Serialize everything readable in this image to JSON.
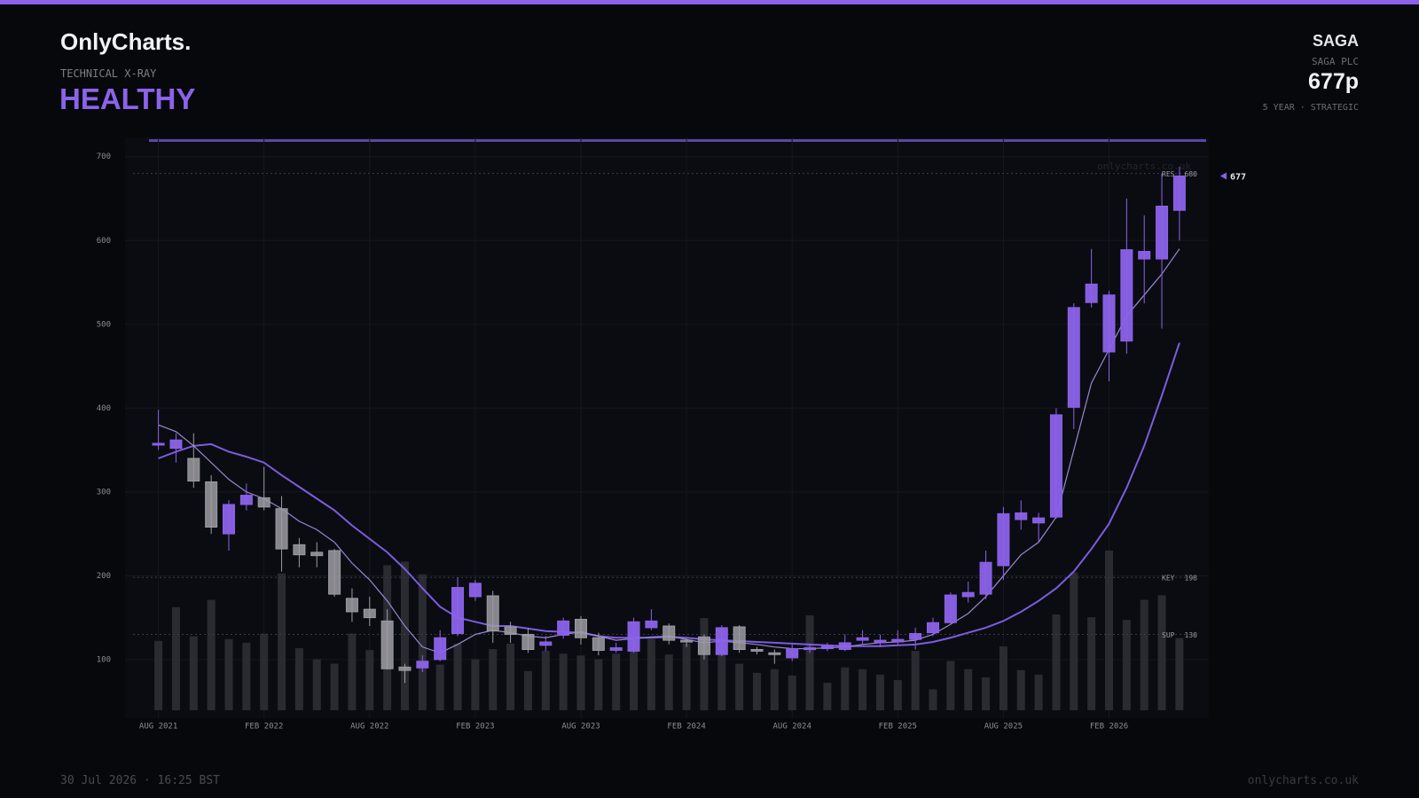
{
  "header": {
    "brand": "OnlyCharts.",
    "kicker": "TECHNICAL X-RAY",
    "verdict": "HEALTHY",
    "ticker": "SAGA",
    "company": "SAGA PLC",
    "price": "677p",
    "horizon": "5 YEAR · STRATEGIC"
  },
  "footer": {
    "timestamp": "30 Jul 2026 · 16:25 BST",
    "site": "onlycharts.co.uk"
  },
  "chart_data": {
    "type": "candlestick",
    "watermark": "onlycharts.co.uk",
    "categories": [
      "AUG 2021",
      null,
      null,
      null,
      null,
      null,
      "FEB 2022",
      null,
      null,
      null,
      null,
      null,
      "AUG 2022",
      null,
      null,
      null,
      null,
      null,
      "FEB 2023",
      null,
      null,
      null,
      null,
      null,
      "AUG 2023",
      null,
      null,
      null,
      null,
      null,
      "FEB 2024",
      null,
      null,
      null,
      null,
      null,
      "AUG 2024",
      null,
      null,
      null,
      null,
      null,
      "FEB 2025",
      null,
      null,
      null,
      null,
      null,
      "AUG 2025",
      null,
      null,
      null,
      null,
      null,
      "FEB 2026",
      null,
      null,
      null,
      null
    ],
    "open": [
      357,
      352,
      340,
      312,
      250,
      285,
      293,
      280,
      237,
      228,
      230,
      173,
      160,
      146,
      91,
      90,
      100,
      131,
      175,
      176,
      139,
      130,
      117,
      129,
      148,
      126,
      111,
      110,
      138,
      140,
      123,
      127,
      106,
      139,
      112,
      108,
      102,
      112,
      113,
      112,
      123,
      120,
      121,
      124,
      132,
      144,
      175,
      178,
      212,
      267,
      263,
      270,
      401,
      526,
      467,
      480,
      578,
      578,
      636
    ],
    "high": [
      398,
      370,
      370,
      320,
      290,
      310,
      330,
      295,
      245,
      240,
      232,
      185,
      175,
      160,
      95,
      105,
      135,
      198,
      195,
      182,
      145,
      138,
      128,
      150,
      152,
      132,
      120,
      150,
      160,
      143,
      125,
      130,
      141,
      141,
      115,
      112,
      118,
      118,
      120,
      130,
      135,
      130,
      135,
      138,
      150,
      180,
      193,
      230,
      282,
      290,
      275,
      400,
      525,
      590,
      540,
      650,
      630,
      680,
      688
    ],
    "low": [
      350,
      335,
      305,
      250,
      230,
      278,
      278,
      205,
      210,
      210,
      175,
      145,
      140,
      88,
      72,
      85,
      98,
      128,
      170,
      120,
      120,
      108,
      110,
      125,
      118,
      105,
      108,
      108,
      135,
      118,
      115,
      100,
      104,
      108,
      106,
      95,
      98,
      108,
      110,
      110,
      118,
      115,
      117,
      112,
      128,
      142,
      168,
      172,
      195,
      255,
      240,
      268,
      375,
      520,
      432,
      465,
      525,
      495,
      600
    ],
    "close": [
      358,
      362,
      313,
      258,
      285,
      296,
      282,
      232,
      225,
      224,
      178,
      157,
      150,
      89,
      87,
      98,
      126,
      186,
      191,
      134,
      130,
      112,
      121,
      146,
      126,
      111,
      114,
      145,
      146,
      123,
      121,
      106,
      138,
      112,
      110,
      106,
      113,
      114,
      116,
      120,
      126,
      123,
      124,
      131,
      144,
      177,
      180,
      216,
      274,
      275,
      269,
      392,
      520,
      548,
      535,
      589,
      587,
      641,
      677
    ],
    "volume": [
      76,
      113,
      81,
      121,
      78,
      74,
      84,
      150,
      68,
      56,
      51,
      84,
      66,
      159,
      163,
      149,
      50,
      73,
      56,
      67,
      73,
      43,
      65,
      62,
      60,
      56,
      62,
      78,
      78,
      61,
      73,
      101,
      77,
      51,
      41,
      45,
      38,
      104,
      30,
      47,
      45,
      39,
      33,
      65,
      23,
      54,
      45,
      36,
      70,
      44,
      39,
      105,
      151,
      102,
      175,
      99,
      121,
      126,
      79
    ],
    "series": [
      {
        "color": "#7c5ce0",
        "values": [
          340,
          348,
          355,
          357,
          348,
          342,
          335,
          320,
          306,
          292,
          278,
          260,
          244,
          228,
          208,
          185,
          163,
          150,
          145,
          140,
          140,
          137,
          134,
          133,
          132,
          128,
          126,
          126,
          126,
          127,
          126,
          124,
          123,
          122,
          121,
          120,
          119,
          118,
          117,
          116,
          116,
          116,
          117,
          118,
          121,
          126,
          132,
          138,
          146,
          157,
          170,
          185,
          205,
          232,
          262,
          305,
          355,
          415,
          478
        ]
      },
      {
        "color": "#9a86d8",
        "values": [
          380,
          372,
          355,
          335,
          315,
          300,
          292,
          280,
          265,
          255,
          240,
          215,
          195,
          170,
          140,
          115,
          108,
          118,
          130,
          135,
          132,
          128,
          126,
          130,
          133,
          128,
          123,
          125,
          127,
          128,
          124,
          120,
          122,
          120,
          118,
          115,
          113,
          113,
          114,
          115,
          118,
          120,
          121,
          123,
          130,
          142,
          155,
          175,
          200,
          225,
          240,
          270,
          350,
          430,
          470,
          510,
          535,
          560,
          590
        ]
      }
    ],
    "levels": [
      {
        "label": "RES",
        "value": 680
      },
      {
        "label": "KEY",
        "value": 198
      },
      {
        "label": "SUP",
        "value": 130
      }
    ],
    "up_color": "#8b63ea",
    "down_color": "#9c9ca2",
    "volume_color": "#2a2b31",
    "ylim": [
      30,
      723
    ],
    "yticks": [
      100,
      200,
      300,
      400,
      500,
      600,
      700
    ],
    "grid": true
  }
}
